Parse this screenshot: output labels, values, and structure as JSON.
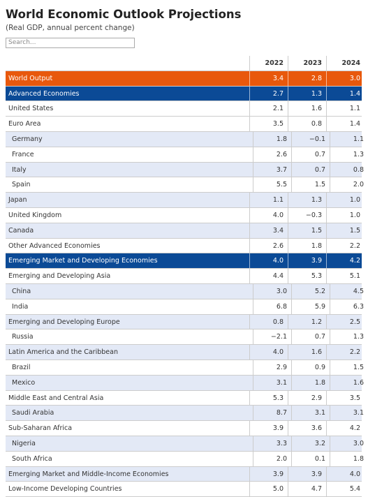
{
  "header": {
    "title": "World Economic Outlook Projections",
    "subtitle": "(Real GDP, annual percent change)",
    "search_placeholder": "Search..."
  },
  "table": {
    "columns": [
      "2022",
      "2023",
      "2024"
    ],
    "rows": [
      {
        "label": "World Output",
        "style": "orange",
        "values": [
          "3.4",
          "2.8",
          "3.0"
        ]
      },
      {
        "label": "Advanced Economies",
        "style": "blue",
        "values": [
          "2.7",
          "1.3",
          "1.4"
        ]
      },
      {
        "label": "United States",
        "values": [
          "2.1",
          "1.6",
          "1.1"
        ]
      },
      {
        "label": "Euro Area",
        "values": [
          "3.5",
          "0.8",
          "1.4"
        ]
      },
      {
        "label": "Germany",
        "indent": true,
        "values": [
          "1.8",
          "−0.1",
          "1.1"
        ]
      },
      {
        "label": "France",
        "indent": true,
        "values": [
          "2.6",
          "0.7",
          "1.3"
        ]
      },
      {
        "label": "Italy",
        "indent": true,
        "values": [
          "3.7",
          "0.7",
          "0.8"
        ]
      },
      {
        "label": "Spain",
        "indent": true,
        "values": [
          "5.5",
          "1.5",
          "2.0"
        ]
      },
      {
        "label": "Japan",
        "values": [
          "1.1",
          "1.3",
          "1.0"
        ]
      },
      {
        "label": "United Kingdom",
        "values": [
          "4.0",
          "−0.3",
          "1.0"
        ]
      },
      {
        "label": "Canada",
        "values": [
          "3.4",
          "1.5",
          "1.5"
        ]
      },
      {
        "label": "Other Advanced Economies",
        "values": [
          "2.6",
          "1.8",
          "2.2"
        ]
      },
      {
        "label": "Emerging Market and Developing Economies",
        "style": "blue",
        "values": [
          "4.0",
          "3.9",
          "4.2"
        ]
      },
      {
        "label": "Emerging and Developing Asia",
        "values": [
          "4.4",
          "5.3",
          "5.1"
        ]
      },
      {
        "label": "China",
        "indent": true,
        "values": [
          "3.0",
          "5.2",
          "4.5"
        ]
      },
      {
        "label": "India",
        "indent": true,
        "values": [
          "6.8",
          "5.9",
          "6.3"
        ]
      },
      {
        "label": "Emerging and Developing Europe",
        "values": [
          "0.8",
          "1.2",
          "2.5"
        ]
      },
      {
        "label": "Russia",
        "indent": true,
        "values": [
          "−2.1",
          "0.7",
          "1.3"
        ]
      },
      {
        "label": "Latin America and the Caribbean",
        "values": [
          "4.0",
          "1.6",
          "2.2"
        ]
      },
      {
        "label": "Brazil",
        "indent": true,
        "values": [
          "2.9",
          "0.9",
          "1.5"
        ]
      },
      {
        "label": "Mexico",
        "indent": true,
        "values": [
          "3.1",
          "1.8",
          "1.6"
        ]
      },
      {
        "label": "Middle East and Central Asia",
        "values": [
          "5.3",
          "2.9",
          "3.5"
        ]
      },
      {
        "label": "Saudi Arabia",
        "indent": true,
        "values": [
          "8.7",
          "3.1",
          "3.1"
        ]
      },
      {
        "label": "Sub-Saharan Africa",
        "values": [
          "3.9",
          "3.6",
          "4.2"
        ]
      },
      {
        "label": "Nigeria",
        "indent": true,
        "values": [
          "3.3",
          "3.2",
          "3.0"
        ]
      },
      {
        "label": "South Africa",
        "indent": true,
        "values": [
          "2.0",
          "0.1",
          "1.8"
        ]
      },
      {
        "label": "Emerging Market and Middle-Income Economies",
        "values": [
          "3.9",
          "3.9",
          "4.0"
        ]
      },
      {
        "label": "Low-Income Developing Countries",
        "values": [
          "5.0",
          "4.7",
          "5.4"
        ]
      }
    ]
  }
}
